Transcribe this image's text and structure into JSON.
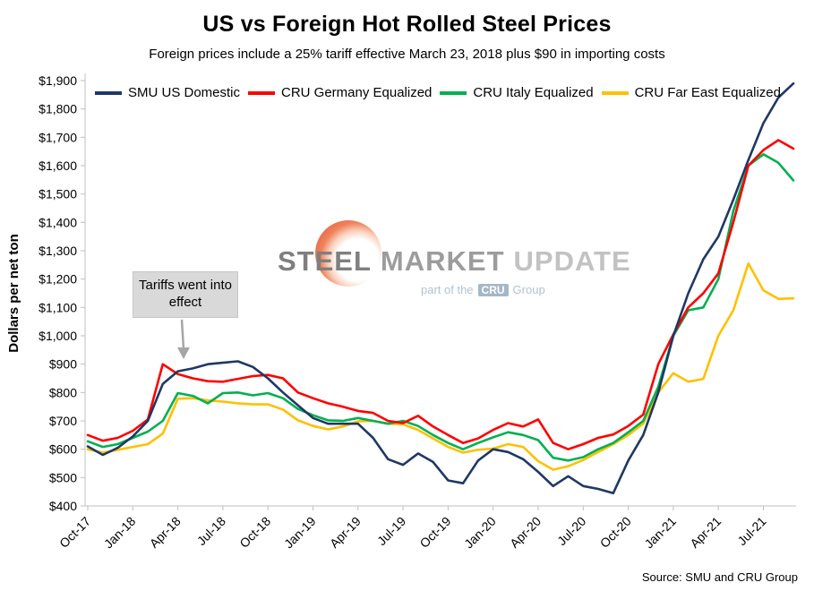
{
  "title": "US vs Foreign Hot Rolled Steel Prices",
  "subtitle": "Foreign prices include a 25% tariff effective March 23, 2018 plus $90 in importing costs",
  "source": "Source: SMU and CRU Group",
  "annotation": {
    "text": "Tariffs went into effect"
  },
  "watermark": {
    "steel": "STEEL",
    "market": "MARKET",
    "update": "UPDATE",
    "tagline_prefix": "part of the",
    "cru": "CRU",
    "group": "Group"
  },
  "chart_data": {
    "type": "line",
    "title": "US vs Foreign Hot Rolled Steel Prices",
    "xlabel": "",
    "ylabel": "Dollars per net ton",
    "ylim": [
      400,
      1900
    ],
    "ytick_step": 100,
    "xtick_every": 3,
    "grid": false,
    "legend_position": "top",
    "x": [
      "Oct-17",
      "Nov-17",
      "Dec-17",
      "Jan-18",
      "Feb-18",
      "Mar-18",
      "Apr-18",
      "May-18",
      "Jun-18",
      "Jul-18",
      "Aug-18",
      "Sep-18",
      "Oct-18",
      "Nov-18",
      "Dec-18",
      "Jan-19",
      "Feb-19",
      "Mar-19",
      "Apr-19",
      "May-19",
      "Jun-19",
      "Jul-19",
      "Aug-19",
      "Sep-19",
      "Oct-19",
      "Nov-19",
      "Dec-19",
      "Jan-20",
      "Feb-20",
      "Mar-20",
      "Apr-20",
      "May-20",
      "Jun-20",
      "Jul-20",
      "Aug-20",
      "Sep-20",
      "Oct-20",
      "Nov-20",
      "Dec-20",
      "Jan-21",
      "Feb-21",
      "Mar-21",
      "Apr-21",
      "May-21",
      "Jun-21",
      "Jul-21",
      "Aug-21",
      "Sep-21"
    ],
    "x_tick_labels": [
      "Oct-17",
      "Jan-18",
      "Apr-18",
      "Jul-18",
      "Oct-18",
      "Jan-19",
      "Apr-19",
      "Jul-19",
      "Oct-19",
      "Jan-20",
      "Apr-20",
      "Jul-20",
      "Oct-20",
      "Jan-21",
      "Apr-21",
      "Jul-21"
    ],
    "series": [
      {
        "name": "SMU US Domestic",
        "color": "#1F3864",
        "values": [
          610,
          580,
          605,
          645,
          700,
          830,
          875,
          885,
          900,
          905,
          910,
          890,
          850,
          800,
          755,
          710,
          690,
          690,
          690,
          640,
          565,
          545,
          585,
          555,
          490,
          480,
          560,
          600,
          590,
          565,
          520,
          470,
          505,
          470,
          460,
          445,
          560,
          650,
          800,
          1000,
          1150,
          1270,
          1350,
          1480,
          1620,
          1750,
          1840,
          1890
        ]
      },
      {
        "name": "CRU Germany Equalized",
        "color": "#FF0000",
        "values": [
          650,
          630,
          640,
          665,
          705,
          900,
          865,
          850,
          840,
          838,
          848,
          858,
          862,
          850,
          800,
          780,
          762,
          750,
          735,
          728,
          700,
          692,
          718,
          680,
          650,
          622,
          638,
          668,
          692,
          680,
          705,
          622,
          600,
          618,
          640,
          652,
          682,
          722,
          900,
          1005,
          1100,
          1150,
          1220,
          1400,
          1600,
          1655,
          1690,
          1660
        ]
      },
      {
        "name": "CRU Italy Equalized",
        "color": "#00B050",
        "values": [
          628,
          608,
          618,
          640,
          662,
          700,
          798,
          788,
          762,
          798,
          800,
          790,
          798,
          780,
          742,
          720,
          702,
          700,
          710,
          700,
          690,
          700,
          682,
          650,
          622,
          600,
          622,
          642,
          660,
          650,
          632,
          570,
          560,
          572,
          600,
          622,
          660,
          700,
          820,
          1000,
          1090,
          1100,
          1200,
          1440,
          1600,
          1640,
          1610,
          1548
        ]
      },
      {
        "name": "CRU Far East Equalized",
        "color": "#FFC000",
        "values": [
          600,
          588,
          598,
          608,
          618,
          655,
          778,
          780,
          772,
          768,
          762,
          758,
          758,
          740,
          702,
          682,
          670,
          680,
          698,
          700,
          690,
          688,
          668,
          638,
          608,
          588,
          598,
          602,
          618,
          608,
          558,
          528,
          540,
          562,
          590,
          618,
          650,
          690,
          800,
          868,
          838,
          848,
          1000,
          1090,
          1255,
          1160,
          1130,
          1132
        ]
      }
    ]
  }
}
